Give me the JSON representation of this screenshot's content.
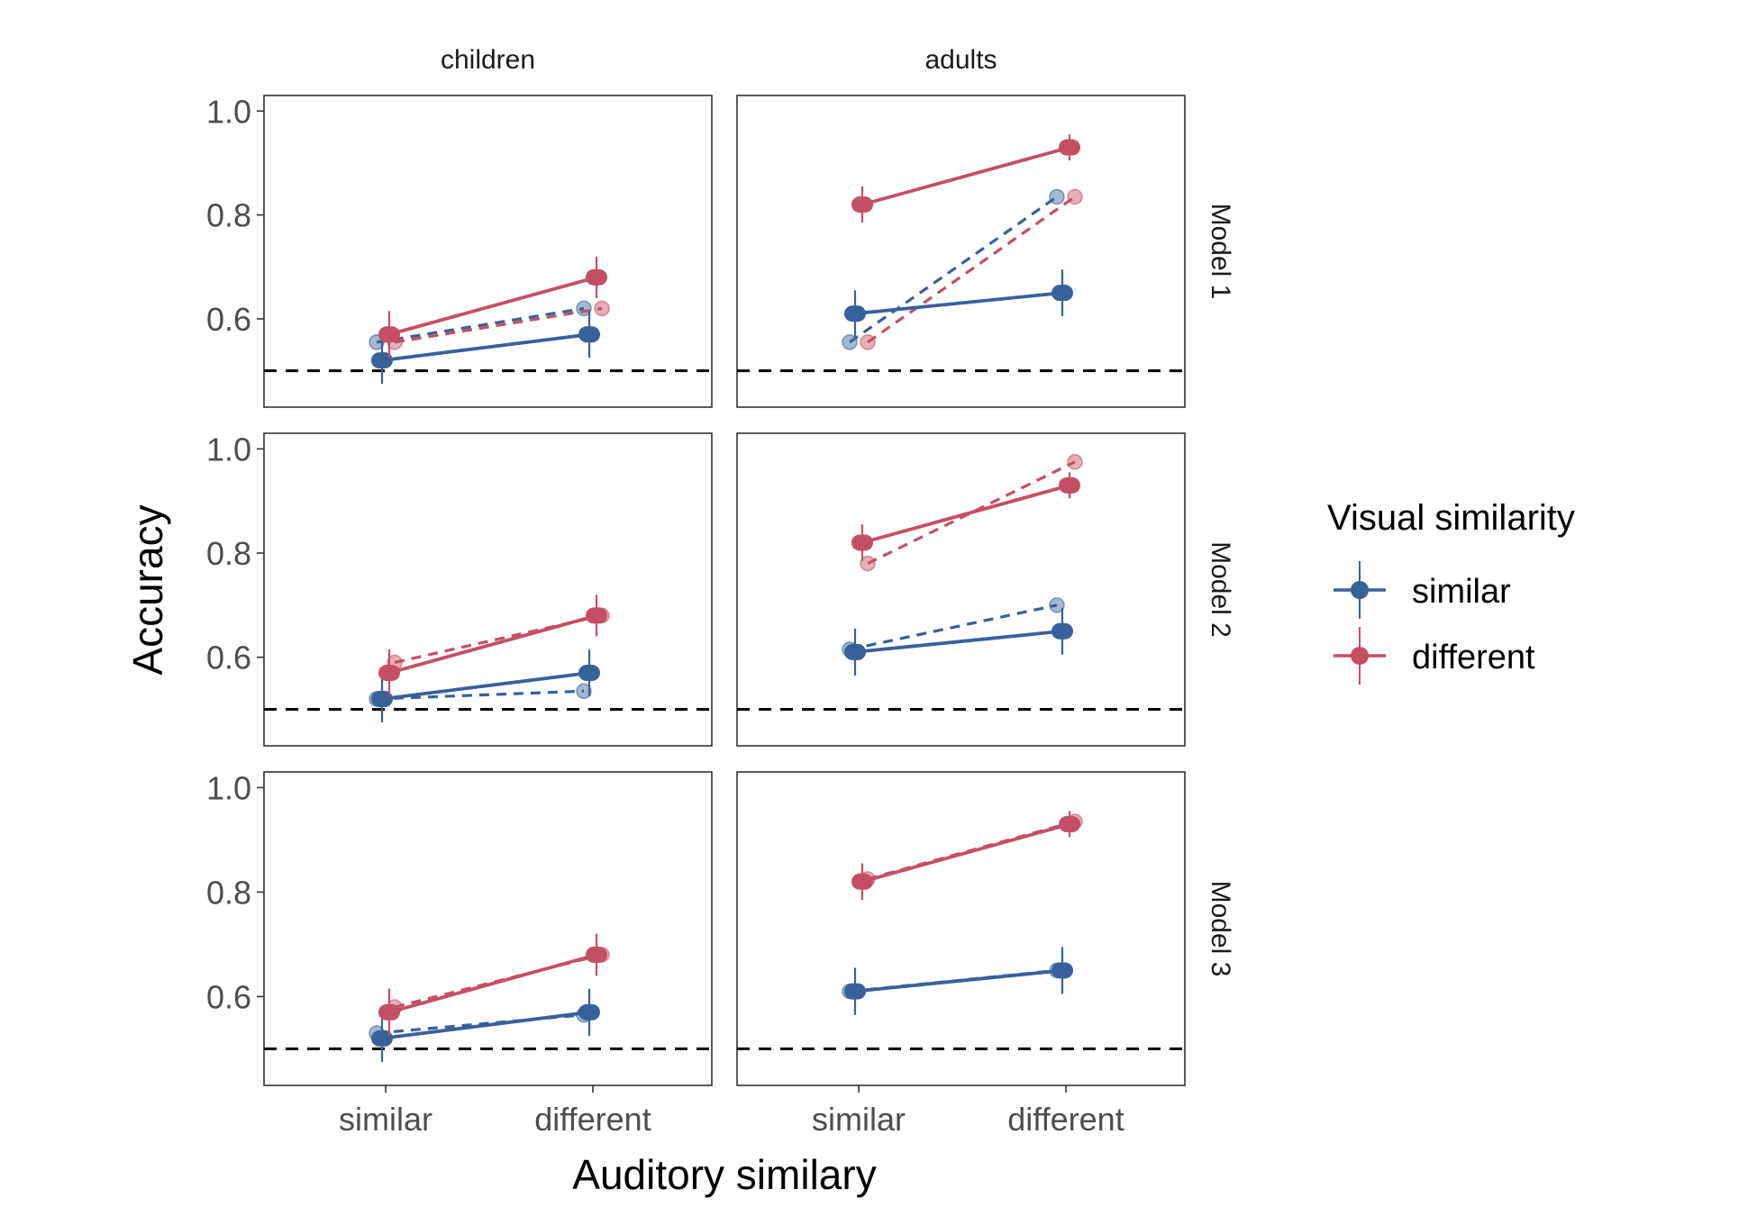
{
  "chart_data": {
    "type": "line",
    "xlabel": "Auditory similary",
    "ylabel": "Accuracy",
    "x_categories": [
      "similar",
      "different"
    ],
    "y_ticks": [
      "0.6",
      "0.8",
      "1.0"
    ],
    "ylim": [
      0.43,
      1.03
    ],
    "chance_level": 0.5,
    "grid": false,
    "columns": [
      "children",
      "adults"
    ],
    "rows": [
      "Model 1",
      "Model 2",
      "Model 3"
    ],
    "legend": {
      "title": "Visual similarity",
      "position": "right",
      "items": [
        {
          "name": "similar",
          "color": "#376199"
        },
        {
          "name": "different",
          "color": "#C44F64"
        }
      ]
    },
    "line_styles": {
      "observed": "solid with error bars",
      "model": "dashed, translucent points"
    },
    "observed": {
      "children": {
        "similar": {
          "values": [
            0.52,
            0.57
          ],
          "err": [
            0.045,
            0.045
          ]
        },
        "different": {
          "values": [
            0.57,
            0.68
          ],
          "err": [
            0.045,
            0.04
          ]
        }
      },
      "adults": {
        "similar": {
          "values": [
            0.61,
            0.65
          ],
          "err": [
            0.045,
            0.045
          ]
        },
        "different": {
          "values": [
            0.82,
            0.93
          ],
          "err": [
            0.035,
            0.025
          ]
        }
      }
    },
    "models": [
      {
        "name": "Model 1",
        "children": {
          "similar": [
            0.555,
            0.62
          ],
          "different": [
            0.555,
            0.62
          ]
        },
        "adults": {
          "similar": [
            0.555,
            0.835
          ],
          "different": [
            0.555,
            0.835
          ]
        }
      },
      {
        "name": "Model 2",
        "children": {
          "similar": [
            0.52,
            0.535
          ],
          "different": [
            0.59,
            0.68
          ]
        },
        "adults": {
          "similar": [
            0.615,
            0.7
          ],
          "different": [
            0.78,
            0.975
          ]
        }
      },
      {
        "name": "Model 3",
        "children": {
          "similar": [
            0.53,
            0.565
          ],
          "different": [
            0.58,
            0.68
          ]
        },
        "adults": {
          "similar": [
            0.61,
            0.65
          ],
          "different": [
            0.825,
            0.935
          ]
        }
      }
    ]
  }
}
